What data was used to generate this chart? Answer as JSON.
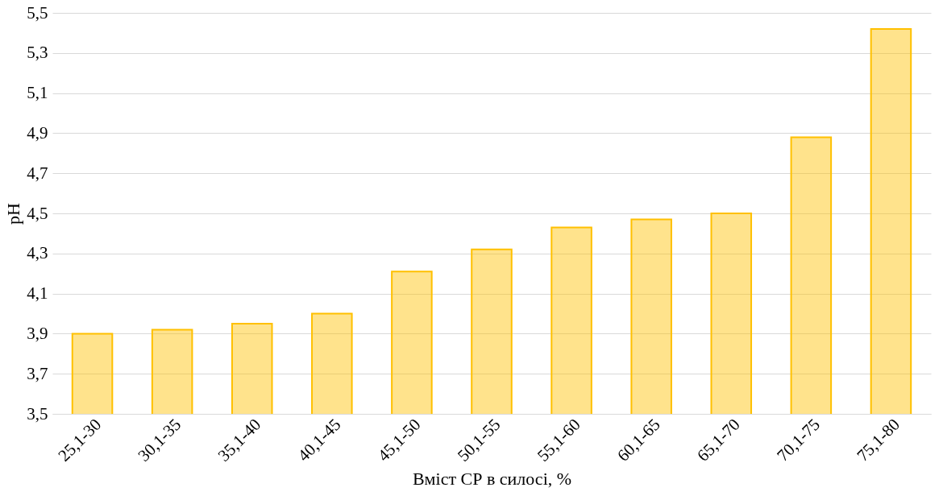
{
  "chart_data": {
    "type": "bar",
    "xlabel": "Вміст СР в силосі, %",
    "ylabel": "pH",
    "categories": [
      "25,1-30",
      "30,1-35",
      "35,1-40",
      "40,1-45",
      "45,1-50",
      "50,1-55",
      "55,1-60",
      "60,1-65",
      "65,1-70",
      "70,1-75",
      "75,1-80"
    ],
    "values": [
      3.9,
      3.92,
      3.95,
      4.0,
      4.21,
      4.32,
      4.43,
      4.47,
      4.5,
      4.88,
      5.42
    ],
    "color": "#ffc000",
    "ylim": [
      3.5,
      5.5
    ],
    "yticks": [
      {
        "value": 3.5,
        "label": "3,5"
      },
      {
        "value": 3.7,
        "label": "3,7"
      },
      {
        "value": 3.9,
        "label": "3,9"
      },
      {
        "value": 4.1,
        "label": "4,1"
      },
      {
        "value": 4.3,
        "label": "4,3"
      },
      {
        "value": 4.5,
        "label": "4,5"
      },
      {
        "value": 4.7,
        "label": "4,7"
      },
      {
        "value": 4.9,
        "label": "4,9"
      },
      {
        "value": 5.1,
        "label": "5,1"
      },
      {
        "value": 5.3,
        "label": "5,3"
      },
      {
        "value": 5.5,
        "label": "5,5"
      }
    ],
    "grid": "y"
  }
}
